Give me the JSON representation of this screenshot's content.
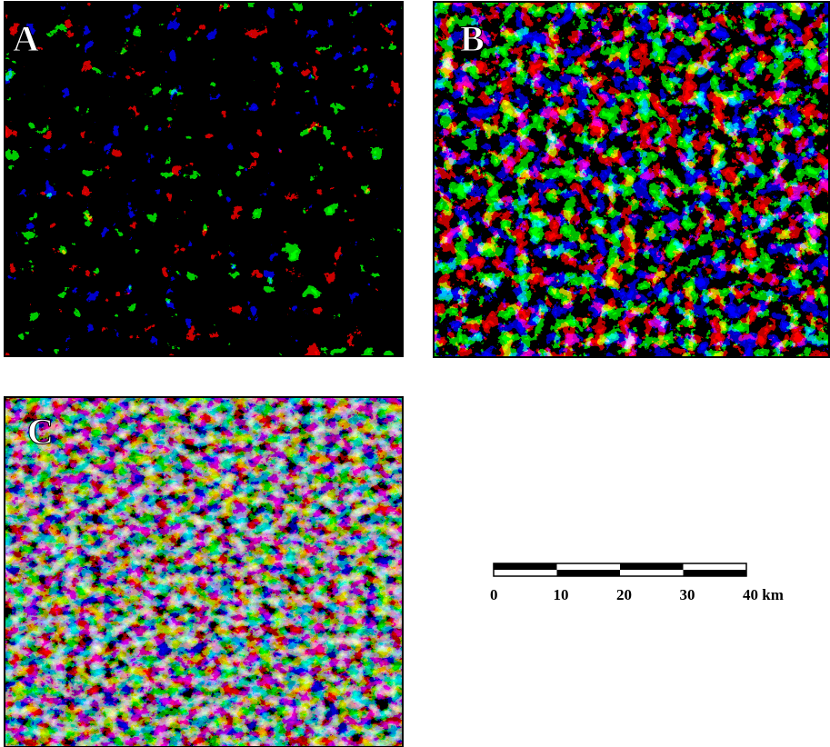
{
  "panels": [
    {
      "label": "A"
    },
    {
      "label": "B"
    },
    {
      "label": "C"
    }
  ],
  "scale_bar": {
    "labels": [
      "0",
      "10",
      "20",
      "30",
      "40 km"
    ]
  }
}
